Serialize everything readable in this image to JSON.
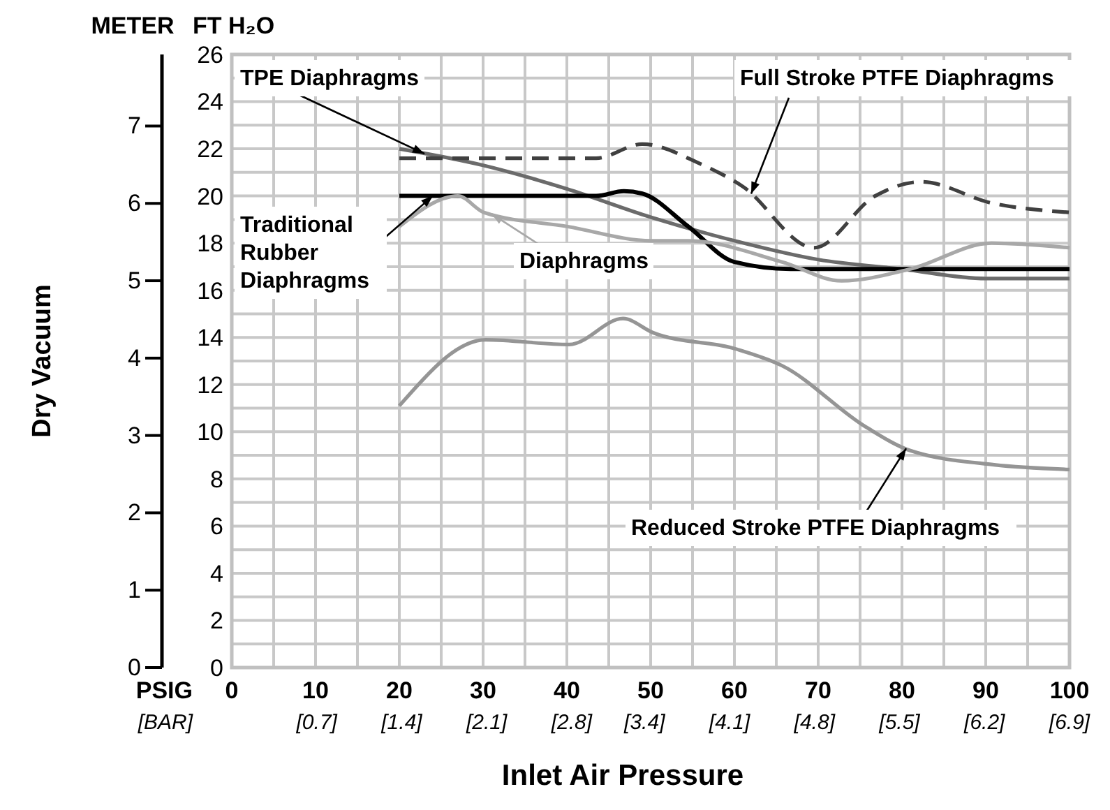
{
  "chart_data": {
    "type": "line",
    "xlabel": "Inlet Air Pressure",
    "ylabel": "Dry Vacuum",
    "annotations": [
      "METER",
      "FT H₂O",
      "PSIG",
      "[BAR]"
    ],
    "xlim": [
      0,
      100
    ],
    "xticks": [
      0,
      {
        "value": 5,
        "label": null
      },
      10,
      {
        "value": 15,
        "label": null
      },
      20,
      {
        "value": 25,
        "label": null
      },
      30,
      {
        "value": 35,
        "label": null
      },
      40,
      {
        "value": 45,
        "label": null
      },
      50,
      {
        "value": 55,
        "label": null
      },
      60,
      {
        "value": 65,
        "label": null
      },
      70,
      {
        "value": 75,
        "label": null
      },
      80,
      {
        "value": 85,
        "label": null
      },
      90,
      {
        "value": 95,
        "label": null
      },
      100
    ],
    "x2lim": [
      0,
      6.9
    ],
    "x2ticks": [
      {
        "value": 0.7,
        "label": "[0.7]"
      },
      {
        "value": 1.4,
        "label": "[1.4]"
      },
      {
        "value": 2.1,
        "label": "[2.1]"
      },
      {
        "value": 2.8,
        "label": "[2.8]"
      },
      {
        "value": 3.4,
        "label": "[3.4]"
      },
      {
        "value": 4.1,
        "label": "[4.1]"
      },
      {
        "value": 4.8,
        "label": "[4.8]"
      },
      {
        "value": 5.5,
        "label": "[5.5]"
      },
      {
        "value": 6.2,
        "label": "[6.2]"
      },
      {
        "value": 6.9,
        "label": "[6.9]"
      }
    ],
    "y2lim": [
      0,
      26
    ],
    "y2ticks": [
      0,
      {
        "value": 1,
        "label": null
      },
      2,
      {
        "value": 3,
        "label": null
      },
      4,
      {
        "value": 5,
        "label": null
      },
      6,
      {
        "value": 7,
        "label": null
      },
      8,
      {
        "value": 9,
        "label": null
      },
      10,
      {
        "value": 11,
        "label": null
      },
      12,
      {
        "value": 13,
        "label": null
      },
      14,
      {
        "value": 15,
        "label": null
      },
      16,
      {
        "value": 17,
        "label": null
      },
      18,
      {
        "value": 19,
        "label": null
      },
      20,
      {
        "value": 21,
        "label": null
      },
      22,
      {
        "value": 23,
        "label": null
      },
      24,
      {
        "value": 25,
        "label": null
      },
      26
    ],
    "ylim": [
      0,
      7.925
    ],
    "yticks": [
      0,
      1,
      2,
      3,
      4,
      5,
      6,
      7
    ],
    "grid": true,
    "series": [
      {
        "name": "TPE Diaphragms",
        "color": "#6b6b6b",
        "axis": "y2",
        "x": [
          20,
          30,
          40,
          50,
          60,
          70,
          80,
          90,
          100
        ],
        "values": [
          22.0,
          21.3,
          20.3,
          19.1,
          18.1,
          17.3,
          16.9,
          16.5,
          16.5
        ]
      },
      {
        "name": "Full Stroke PTFE Diaphragms",
        "color": "#404040",
        "axis": "y2",
        "line_style": "dashed",
        "x": [
          20,
          30,
          43.5,
          49,
          55.7,
          61,
          69.5,
          76.8,
          82.3,
          90.7,
          100
        ],
        "values": [
          21.6,
          21.6,
          21.6,
          22.2,
          21.4,
          20.4,
          17.8,
          20.0,
          20.6,
          19.7,
          19.3
        ]
      },
      {
        "name": "Traditional Rubber Diaphragms",
        "color": "#000000",
        "axis": "y2",
        "x": [
          20,
          30,
          43.5,
          46.8,
          49,
          54.5,
          60,
          66.7,
          71,
          80,
          90,
          100
        ],
        "values": [
          20.0,
          20.0,
          20.0,
          20.2,
          20.1,
          18.7,
          17.2,
          16.9,
          16.9,
          16.9,
          16.9,
          16.9
        ]
      },
      {
        "name": "Diaphragms",
        "color": "#a8a8a8",
        "axis": "y2",
        "x": [
          20,
          27,
          30.1,
          40.1,
          50.1,
          54.5,
          65.7,
          72.8,
          81,
          90.7,
          100
        ],
        "values": [
          18.7,
          20.0,
          19.3,
          18.7,
          18.1,
          18.1,
          17.2,
          16.4,
          16.9,
          18.0,
          17.8
        ]
      },
      {
        "name": "Reduced Stroke PTFE Diaphragms",
        "color": "#959595",
        "axis": "y2",
        "x": [
          20,
          30.3,
          40.3,
          46.7,
          50.3,
          60.3,
          65.7,
          75.7,
          81,
          91,
          100
        ],
        "values": [
          11.1,
          13.9,
          13.7,
          14.8,
          14.2,
          13.5,
          12.8,
          10.2,
          9.2,
          8.6,
          8.4
        ]
      }
    ]
  }
}
